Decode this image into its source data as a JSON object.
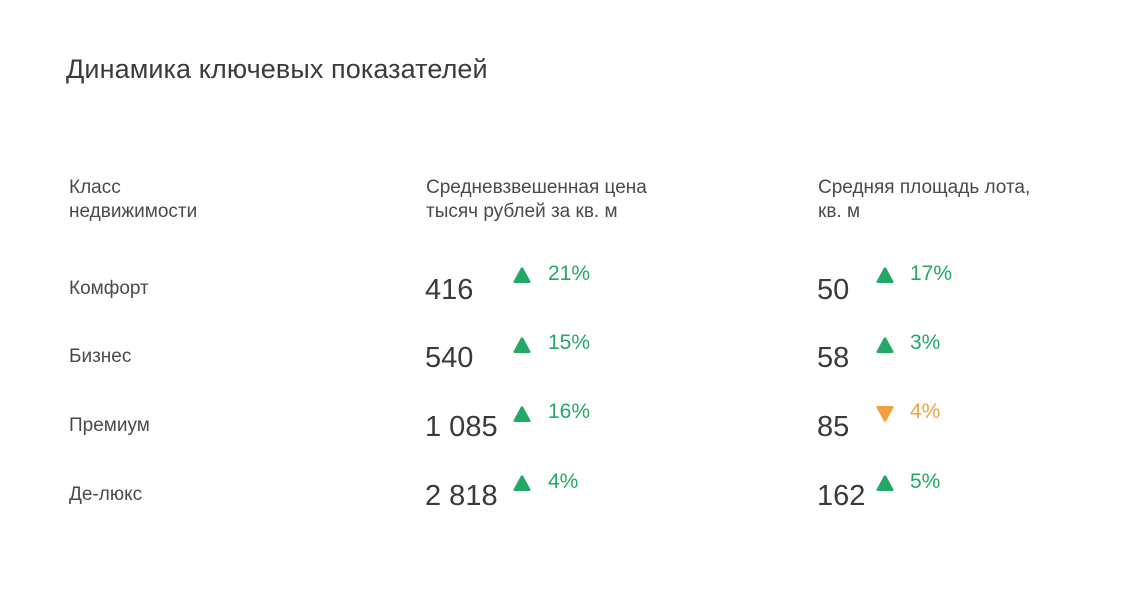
{
  "title": "Динамика ключевых показателей",
  "headers": {
    "class": "Класс\nнедвижимости",
    "price": "Средневзвешенная цена\nтысяч рублей за кв. м",
    "area": "Средняя площадь лота,\nкв. м"
  },
  "colors": {
    "up": "#23a866",
    "down": "#f2a040"
  },
  "rows": [
    {
      "label": "Комфорт",
      "price": "416",
      "price_change": "21%",
      "price_trend": "up",
      "area": "50",
      "area_change": "17%",
      "area_trend": "up"
    },
    {
      "label": "Бизнес",
      "price": "540",
      "price_change": "15%",
      "price_trend": "up",
      "area": "58",
      "area_change": "3%",
      "area_trend": "up"
    },
    {
      "label": "Премиум",
      "price": "1 085",
      "price_change": "16%",
      "price_trend": "up",
      "area": "85",
      "area_change": "4%",
      "area_trend": "down"
    },
    {
      "label": "Де-люкс",
      "price": "2 818",
      "price_change": "4%",
      "price_trend": "up",
      "area": "162",
      "area_change": "5%",
      "area_trend": "up"
    }
  ]
}
